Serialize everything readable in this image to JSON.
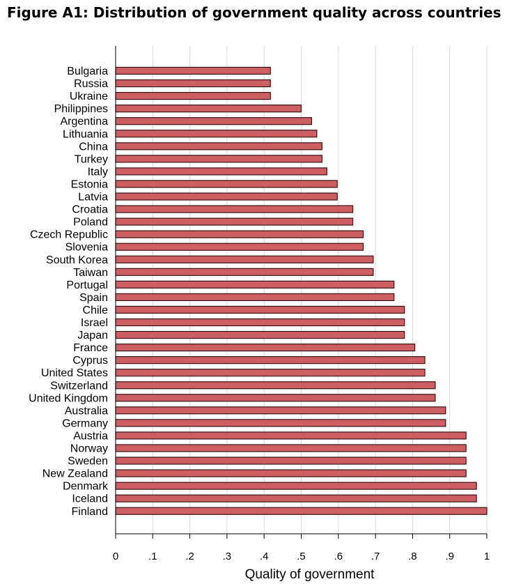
{
  "title": "Figure A1: Distribution of government quality across countries",
  "colors": {
    "bar_fill": "#cd5f63",
    "bar_stroke": "#3a1414",
    "grid": "#d9d9d9",
    "axis": "#000000"
  },
  "chart_data": {
    "type": "bar",
    "orientation": "horizontal",
    "categories": [
      "Bulgaria",
      "Russia",
      "Ukraine",
      "Philippines",
      "Argentina",
      "Lithuania",
      "China",
      "Turkey",
      "Italy",
      "Estonia",
      "Latvia",
      "Croatia",
      "Poland",
      "Czech Republic",
      "Slovenia",
      "South Korea",
      "Taiwan",
      "Portugal",
      "Spain",
      "Chile",
      "Israel",
      "Japan",
      "France",
      "Cyprus",
      "United States",
      "Switzerland",
      "United Kingdom",
      "Australia",
      "Germany",
      "Austria",
      "Norway",
      "Sweden",
      "New Zealand",
      "Denmark",
      "Iceland",
      "Finland"
    ],
    "values": [
      0.417,
      0.417,
      0.417,
      0.5,
      0.528,
      0.542,
      0.556,
      0.556,
      0.569,
      0.597,
      0.597,
      0.639,
      0.639,
      0.667,
      0.667,
      0.694,
      0.694,
      0.75,
      0.75,
      0.778,
      0.778,
      0.778,
      0.806,
      0.833,
      0.833,
      0.861,
      0.861,
      0.889,
      0.889,
      0.944,
      0.944,
      0.944,
      0.944,
      0.972,
      0.972,
      1.0
    ],
    "xlabel": "Quality of government",
    "xlim": [
      0,
      1
    ],
    "xticks": [
      0,
      0.1,
      0.2,
      0.3,
      0.4,
      0.5,
      0.6,
      0.7,
      0.8,
      0.9,
      1
    ],
    "xtick_labels": [
      "0",
      ".1",
      ".2",
      ".3",
      ".4",
      ".5",
      ".6",
      ".7",
      ".8",
      ".9",
      "1"
    ],
    "grid": true
  }
}
